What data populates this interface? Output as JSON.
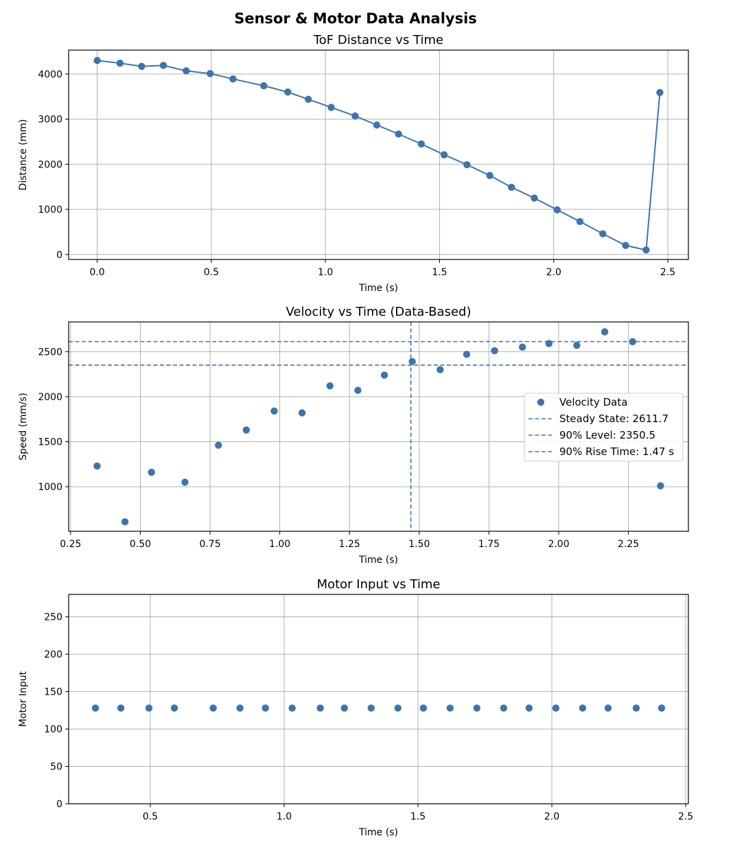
{
  "figure": {
    "title": "Sensor & Motor Data Analysis"
  },
  "colors": {
    "series": "#3b75af",
    "grid": "#b0b0b0",
    "axes": "#000000"
  },
  "chart_data": [
    {
      "type": "line",
      "title": "ToF Distance vs Time",
      "xlabel": "Time (s)",
      "ylabel": "Distance (mm)",
      "xlim": [
        -0.125,
        2.59
      ],
      "ylim": [
        -110,
        4530
      ],
      "xticks": [
        0.0,
        0.5,
        1.0,
        1.5,
        2.0,
        2.5
      ],
      "xtick_labels": [
        "0.0",
        "0.5",
        "1.0",
        "1.5",
        "2.0",
        "2.5"
      ],
      "yticks": [
        0,
        1000,
        2000,
        3000,
        4000
      ],
      "ytick_labels": [
        "0",
        "1000",
        "2000",
        "3000",
        "4000"
      ],
      "grid": true,
      "series": [
        {
          "name": "ToF Distance",
          "marker": "circle",
          "x": [
            0.0,
            0.1,
            0.195,
            0.29,
            0.39,
            0.495,
            0.595,
            0.73,
            0.835,
            0.925,
            1.025,
            1.13,
            1.225,
            1.32,
            1.42,
            1.52,
            1.62,
            1.72,
            1.815,
            1.915,
            2.015,
            2.115,
            2.215,
            2.315,
            2.405,
            2.465
          ],
          "y": [
            4300,
            4240,
            4170,
            4190,
            4070,
            4010,
            3890,
            3740,
            3600,
            3440,
            3260,
            3070,
            2870,
            2670,
            2450,
            2210,
            1990,
            1750,
            1490,
            1250,
            990,
            730,
            460,
            200,
            100,
            3590
          ]
        }
      ]
    },
    {
      "type": "scatter",
      "title": "Velocity vs Time (Data-Based)",
      "xlabel": "Time (s)",
      "ylabel": "Speed (mm/s)",
      "xlim": [
        0.243,
        2.465
      ],
      "ylim": [
        505,
        2830
      ],
      "xticks": [
        0.25,
        0.5,
        0.75,
        1.0,
        1.25,
        1.5,
        1.75,
        2.0,
        2.25
      ],
      "xtick_labels": [
        "0.25",
        "0.50",
        "0.75",
        "1.00",
        "1.25",
        "1.50",
        "1.75",
        "2.00",
        "2.25"
      ],
      "yticks": [
        1000,
        1500,
        2000,
        2500
      ],
      "ytick_labels": [
        "1000",
        "1500",
        "2000",
        "2500"
      ],
      "grid": true,
      "series": [
        {
          "name": "Velocity Data",
          "marker": "circle",
          "x": [
            0.345,
            0.445,
            0.54,
            0.66,
            0.78,
            0.88,
            0.98,
            1.08,
            1.18,
            1.28,
            1.375,
            1.475,
            1.575,
            1.67,
            1.77,
            1.87,
            1.965,
            2.065,
            2.165,
            2.265,
            2.365
          ],
          "y": [
            1230,
            610,
            1160,
            1050,
            1460,
            1630,
            1840,
            1820,
            2120,
            2070,
            2240,
            2390,
            2300,
            2470,
            2510,
            2550,
            2590,
            2570,
            2720,
            2610,
            1010
          ]
        }
      ],
      "reference_lines": [
        {
          "orientation": "horizontal",
          "value": 2611.7,
          "style": "dashed",
          "label": "Steady State: 2611.7"
        },
        {
          "orientation": "horizontal",
          "value": 2350.5,
          "style": "dashed",
          "label": "90% Level: 2350.5"
        },
        {
          "orientation": "vertical",
          "value": 1.47,
          "style": "dashed",
          "label": "90% Rise Time: 1.47 s"
        }
      ],
      "legend": {
        "placement": "center-right",
        "entries": [
          "Velocity Data",
          "Steady State: 2611.7",
          "90% Level: 2350.5",
          "90% Rise Time: 1.47 s"
        ]
      }
    },
    {
      "type": "scatter",
      "title": "Motor Input vs Time",
      "xlabel": "Time (s)",
      "ylabel": "Motor Input",
      "xlim": [
        0.195,
        2.51
      ],
      "ylim": [
        0,
        280
      ],
      "xticks": [
        0.5,
        1.0,
        1.5,
        2.0,
        2.5
      ],
      "xtick_labels": [
        "0.5",
        "1.0",
        "1.5",
        "2.0",
        "2.5"
      ],
      "yticks": [
        0,
        50,
        100,
        150,
        200,
        250
      ],
      "ytick_labels": [
        "0",
        "50",
        "100",
        "150",
        "200",
        "250"
      ],
      "grid": true,
      "series": [
        {
          "name": "Motor Input",
          "marker": "circle",
          "x": [
            0.295,
            0.39,
            0.495,
            0.59,
            0.735,
            0.835,
            0.93,
            1.03,
            1.135,
            1.225,
            1.325,
            1.425,
            1.52,
            1.62,
            1.72,
            1.82,
            1.915,
            2.015,
            2.115,
            2.21,
            2.315,
            2.41
          ],
          "y": [
            128,
            128,
            128,
            128,
            128,
            128,
            128,
            128,
            128,
            128,
            128,
            128,
            128,
            128,
            128,
            128,
            128,
            128,
            128,
            128,
            128,
            128
          ]
        }
      ]
    }
  ]
}
